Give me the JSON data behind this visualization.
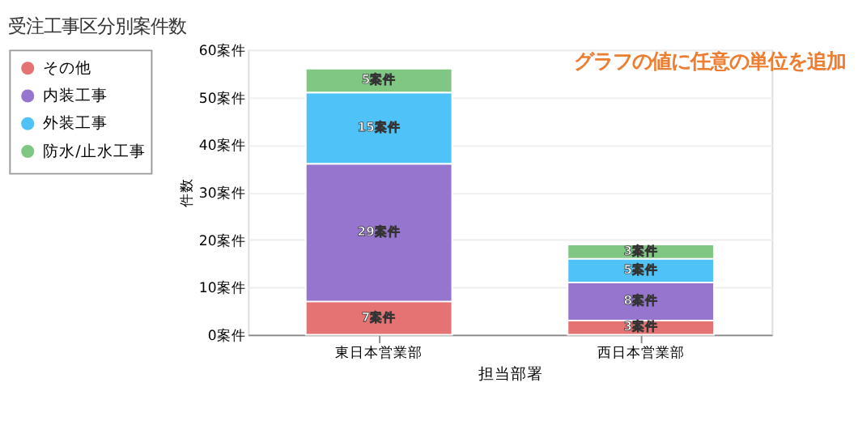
{
  "chart_data": {
    "type": "bar",
    "title": "受注工事区分別案件数",
    "xlabel": "担当部署",
    "ylabel": "件数",
    "stacked": true,
    "categories": [
      "東日本営業部",
      "西日本営業部"
    ],
    "series": [
      {
        "name": "その他",
        "color": "#e57373",
        "values": [
          7,
          3
        ],
        "value_labels": [
          "7案件",
          "3案件"
        ]
      },
      {
        "name": "内装工事",
        "color": "#9575cd",
        "values": [
          29,
          8
        ],
        "value_labels": [
          "29案件",
          "8案件"
        ]
      },
      {
        "name": "外装工事",
        "color": "#4fc3f7",
        "values": [
          15,
          5
        ],
        "value_labels": [
          "15案件",
          "5案件"
        ]
      },
      {
        "name": "防水/止水工事",
        "color": "#81c784",
        "values": [
          5,
          3
        ],
        "value_labels": [
          "5案件",
          "3案件"
        ]
      }
    ],
    "ylim": [
      0,
      60
    ],
    "yticks": [
      {
        "value": 0,
        "label": "0案件"
      },
      {
        "value": 10,
        "label": "10案件"
      },
      {
        "value": 20,
        "label": "20案件"
      },
      {
        "value": 30,
        "label": "30案件"
      },
      {
        "value": 40,
        "label": "40案件"
      },
      {
        "value": 50,
        "label": "50案件"
      },
      {
        "value": 60,
        "label": "60案件"
      }
    ],
    "grid": "y",
    "legend": "top left",
    "annotations": [
      "グラフの値に任意の単位を追加"
    ]
  }
}
